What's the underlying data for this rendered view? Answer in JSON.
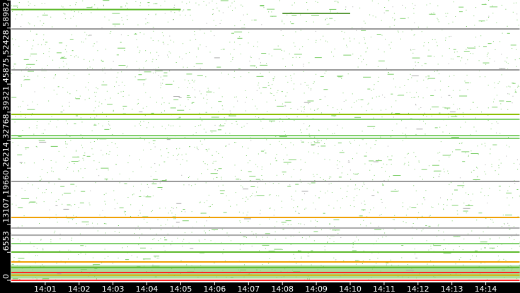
{
  "chart_data": {
    "type": "scatter",
    "title": "",
    "xlabel": "",
    "ylabel": "",
    "x_range": [
      "14:00",
      "14:15"
    ],
    "ylim": [
      0,
      65536
    ],
    "y_ticks": [
      "0",
      "6553",
      "13107",
      "19660",
      "26214",
      "32768",
      "39321",
      "45875",
      "52428",
      "58982",
      "65536"
    ],
    "x_ticks": [
      "14:01",
      "14:02",
      "14:03",
      "14:04",
      "14:05",
      "14:06",
      "14:07",
      "14:08",
      "14:09",
      "14:10",
      "14:11",
      "14:12",
      "14:13",
      "14:14"
    ],
    "grid": false,
    "background": "#ffffff",
    "colors": {
      "sparse": "#7dcf6a",
      "medium": "#5cb82a",
      "busy": "#f0a000",
      "hot": "#ff2020",
      "idle": "#888888"
    },
    "noise_density": "sparse random points across all ports",
    "dense_band": {
      "port_range": [
        400,
        3500
      ],
      "color": "#8fd37a"
    },
    "lines": [
      {
        "port": 63300,
        "start": "14:00",
        "end": "14:05",
        "color": "#5cb82a"
      },
      {
        "port": 62400,
        "start": "14:08",
        "end": "14:10",
        "color": "#5a9a3a"
      },
      {
        "port": 58770,
        "start": "14:00",
        "end": "14:15",
        "color": "#999999"
      },
      {
        "port": 49190,
        "start": "14:00",
        "end": "14:15",
        "color": "#999999"
      },
      {
        "port": 38790,
        "start": "14:00",
        "end": "14:15",
        "color": "#8cbf00"
      },
      {
        "port": 37640,
        "start": "14:00",
        "end": "14:15",
        "color": "#7dcf6a"
      },
      {
        "port": 33840,
        "start": "14:00",
        "end": "14:15",
        "color": "#7dcf6a"
      },
      {
        "port": 33180,
        "start": "14:00",
        "end": "14:15",
        "color": "#7dcf6a"
      },
      {
        "port": 23110,
        "start": "14:00",
        "end": "14:15",
        "color": "#999999"
      },
      {
        "port": 14690,
        "start": "14:00",
        "end": "14:15",
        "color": "#f0a000"
      },
      {
        "port": 12220,
        "start": "14:00",
        "end": "14:15",
        "color": "#aaaaaa"
      },
      {
        "port": 10560,
        "start": "14:00",
        "end": "14:15",
        "color": "#aaaaaa"
      },
      {
        "port": 8580,
        "start": "14:00",
        "end": "14:15",
        "color": "#7dcf6a"
      },
      {
        "port": 6600,
        "start": "14:00",
        "end": "14:15",
        "color": "#5cb82a"
      },
      {
        "port": 4290,
        "start": "14:00",
        "end": "14:15",
        "color": "#f0a000"
      },
      {
        "port": 3000,
        "start": "14:00",
        "end": "14:15",
        "color": "#5cb82a"
      },
      {
        "port": 1820,
        "start": "14:00",
        "end": "14:15",
        "color": "#ff2020"
      },
      {
        "port": 1200,
        "start": "14:00",
        "end": "14:15",
        "color": "#d8b000"
      },
      {
        "port": 0,
        "start": "14:00",
        "end": "14:15",
        "color": "#ff2020"
      }
    ]
  }
}
